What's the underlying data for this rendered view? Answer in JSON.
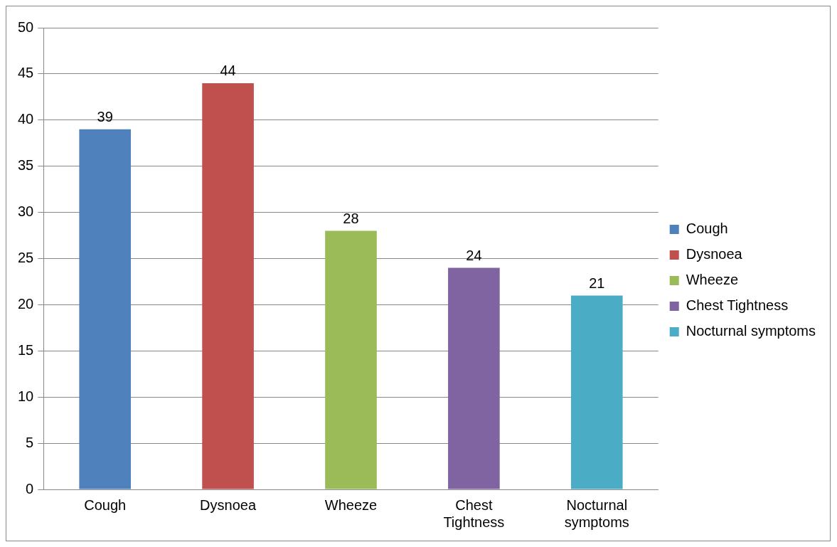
{
  "chart_data": {
    "type": "bar",
    "categories": [
      "Cough",
      "Dysnoea",
      "Wheeze",
      "Chest Tightness",
      "Nocturnal symptoms"
    ],
    "series": [
      {
        "name": "Cough",
        "color": "#4f81bd",
        "values": [
          39,
          null,
          null,
          null,
          null
        ]
      },
      {
        "name": "Dysnoea",
        "color": "#c0504d",
        "values": [
          null,
          44,
          null,
          null,
          null
        ]
      },
      {
        "name": "Wheeze",
        "color": "#9bbb59",
        "values": [
          null,
          null,
          28,
          null,
          null
        ]
      },
      {
        "name": "Chest Tightness",
        "color": "#8064a2",
        "values": [
          null,
          null,
          null,
          24,
          null
        ]
      },
      {
        "name": "Nocturnal symptoms",
        "color": "#4bacc6",
        "values": [
          null,
          null,
          null,
          null,
          21
        ]
      }
    ],
    "ylim": [
      0,
      50
    ],
    "yticks": [
      0,
      5,
      10,
      15,
      20,
      25,
      30,
      35,
      40,
      45,
      50
    ],
    "grid": "y",
    "legend": "right",
    "data_labels": true
  }
}
